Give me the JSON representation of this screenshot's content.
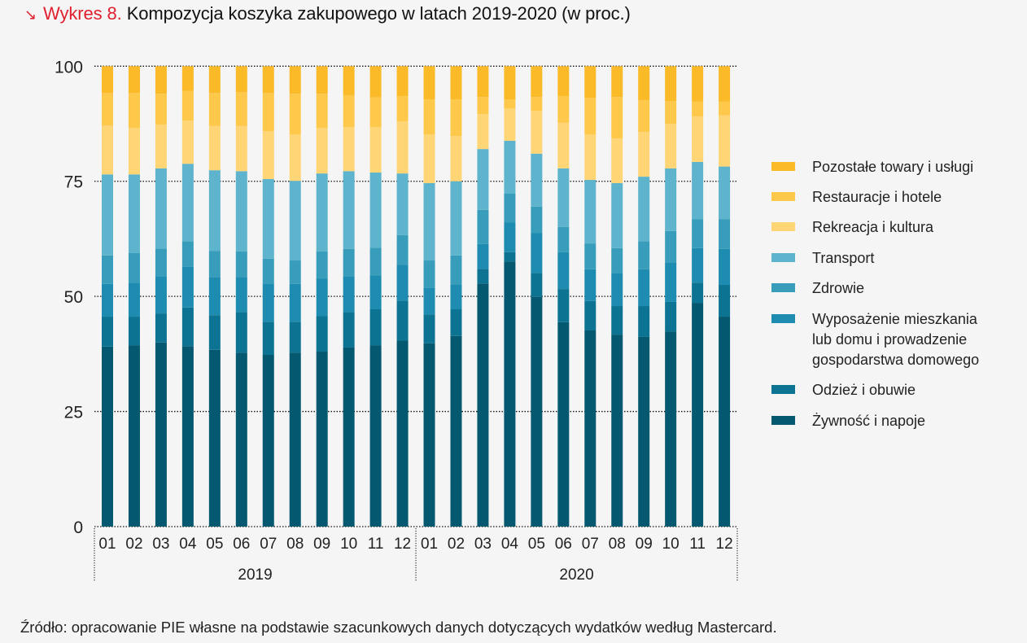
{
  "header": {
    "arrow_icon": "↘",
    "label": "Wykres 8.",
    "title": "Kompozycja koszyka zakupowego w latach 2019-2020 (w proc.)"
  },
  "source": "Źródło: opracowanie PIE własne na podstawie szacunkowych danych dotyczących wydatków według Mastercard.",
  "chart_data": {
    "type": "bar",
    "stacked": true,
    "title": "Kompozycja koszyka zakupowego w latach 2019-2020 (w proc.)",
    "xlabel": "",
    "ylabel": "",
    "ylim": [
      0,
      100
    ],
    "yticks": [
      0,
      25,
      50,
      75,
      100
    ],
    "grid": "horizontal-dotted",
    "legend_position": "right",
    "categories": [
      "01",
      "02",
      "03",
      "04",
      "05",
      "06",
      "07",
      "08",
      "09",
      "10",
      "11",
      "12",
      "01",
      "02",
      "03",
      "04",
      "05",
      "06",
      "07",
      "08",
      "09",
      "10",
      "11",
      "12"
    ],
    "groups": [
      {
        "label": "2019",
        "start": 0,
        "end": 11
      },
      {
        "label": "2020",
        "start": 12,
        "end": 23
      }
    ],
    "series": [
      {
        "name": "Żywność i napoje",
        "color": "#04586f",
        "values": [
          39.1,
          39.4,
          40.0,
          39.2,
          38.4,
          37.8,
          37.3,
          37.8,
          38.0,
          38.9,
          39.4,
          40.4,
          39.8,
          41.4,
          52.8,
          57.6,
          49.9,
          44.4,
          42.6,
          41.7,
          41.2,
          42.4,
          48.6,
          45.6
        ]
      },
      {
        "name": "Odzież i obuwie",
        "color": "#0c7393",
        "values": [
          6.5,
          6.2,
          6.3,
          8.4,
          7.5,
          8.8,
          7.2,
          6.7,
          7.7,
          7.7,
          7.8,
          8.7,
          6.3,
          5.8,
          3.2,
          2.0,
          5.2,
          7.2,
          6.4,
          6.2,
          6.7,
          6.4,
          4.4,
          6.9
        ]
      },
      {
        "name": "Wyposażenie mieszkania lub domu i prowadzenie gospodarstwa domowego",
        "color": "#1d8cb0",
        "values": [
          7.1,
          7.4,
          8.1,
          8.8,
          8.3,
          7.6,
          8.3,
          8.2,
          8.2,
          7.8,
          7.4,
          7.8,
          5.7,
          5.3,
          5.4,
          6.5,
          8.7,
          8.0,
          6.9,
          7.2,
          8.0,
          8.6,
          7.5,
          7.8
        ]
      },
      {
        "name": "Zdrowie",
        "color": "#389dbb",
        "values": [
          6.2,
          6.4,
          6.0,
          5.6,
          5.7,
          5.6,
          5.4,
          5.1,
          5.9,
          5.9,
          6.0,
          6.4,
          6.0,
          6.4,
          7.4,
          6.2,
          5.7,
          5.5,
          5.6,
          5.4,
          6.1,
          6.8,
          6.3,
          6.5
        ]
      },
      {
        "name": "Transport",
        "color": "#5eb3cd",
        "values": [
          17.6,
          17.1,
          17.4,
          16.8,
          17.5,
          17.4,
          17.3,
          17.3,
          16.9,
          16.9,
          16.3,
          13.4,
          16.8,
          16.1,
          13.2,
          11.5,
          11.5,
          12.7,
          13.8,
          14.1,
          14.0,
          13.6,
          12.4,
          11.4
        ]
      },
      {
        "name": "Rekreacja i kultura",
        "color": "#ffd575",
        "values": [
          10.6,
          10.1,
          9.5,
          9.4,
          9.6,
          9.8,
          10.4,
          10.1,
          9.9,
          9.6,
          9.9,
          11.3,
          10.6,
          9.8,
          7.6,
          7.0,
          9.3,
          9.9,
          9.9,
          9.7,
          9.7,
          9.7,
          9.9,
          11.1
        ]
      },
      {
        "name": "Restauracje i hotele",
        "color": "#fec84a",
        "values": [
          7.1,
          7.6,
          6.7,
          6.4,
          7.2,
          7.4,
          8.3,
          8.8,
          7.4,
          6.9,
          6.4,
          5.5,
          7.6,
          8.0,
          3.7,
          2.0,
          3.0,
          5.8,
          7.9,
          9.0,
          6.9,
          4.9,
          3.2,
          3.0
        ]
      },
      {
        "name": "Pozostałe towary i usługi",
        "color": "#fbba27",
        "values": [
          5.8,
          5.8,
          6.0,
          5.4,
          5.8,
          5.6,
          5.8,
          6.0,
          6.0,
          6.3,
          6.8,
          6.5,
          7.2,
          7.2,
          6.7,
          7.2,
          6.7,
          6.5,
          6.9,
          6.7,
          7.4,
          7.6,
          7.7,
          7.7
        ]
      }
    ]
  },
  "legend": {
    "items": [
      {
        "label": "Pozostałe towary i usługi",
        "color": "#fbba27",
        "lines": [
          "Pozostałe towary i usługi"
        ]
      },
      {
        "label": "Restauracje i hotele",
        "color": "#fec84a",
        "lines": [
          "Restauracje i hotele"
        ]
      },
      {
        "label": "Rekreacja i kultura",
        "color": "#ffd575",
        "lines": [
          "Rekreacja i kultura"
        ]
      },
      {
        "label": "Transport",
        "color": "#5eb3cd",
        "lines": [
          "Transport"
        ]
      },
      {
        "label": "Zdrowie",
        "color": "#389dbb",
        "lines": [
          "Zdrowie"
        ]
      },
      {
        "label": "Wyposażenie mieszkania lub domu i prowadzenie gospodarstwa domowego",
        "color": "#1d8cb0",
        "lines": [
          "Wyposażenie mieszkania",
          "lub domu i prowadzenie",
          "gospodarstwa domowego"
        ]
      },
      {
        "label": "Odzież i obuwie",
        "color": "#0c7393",
        "lines": [
          "Odzież i obuwie"
        ]
      },
      {
        "label": "Żywność i napoje",
        "color": "#04586f",
        "lines": [
          "Żywność i napoje"
        ]
      }
    ]
  }
}
